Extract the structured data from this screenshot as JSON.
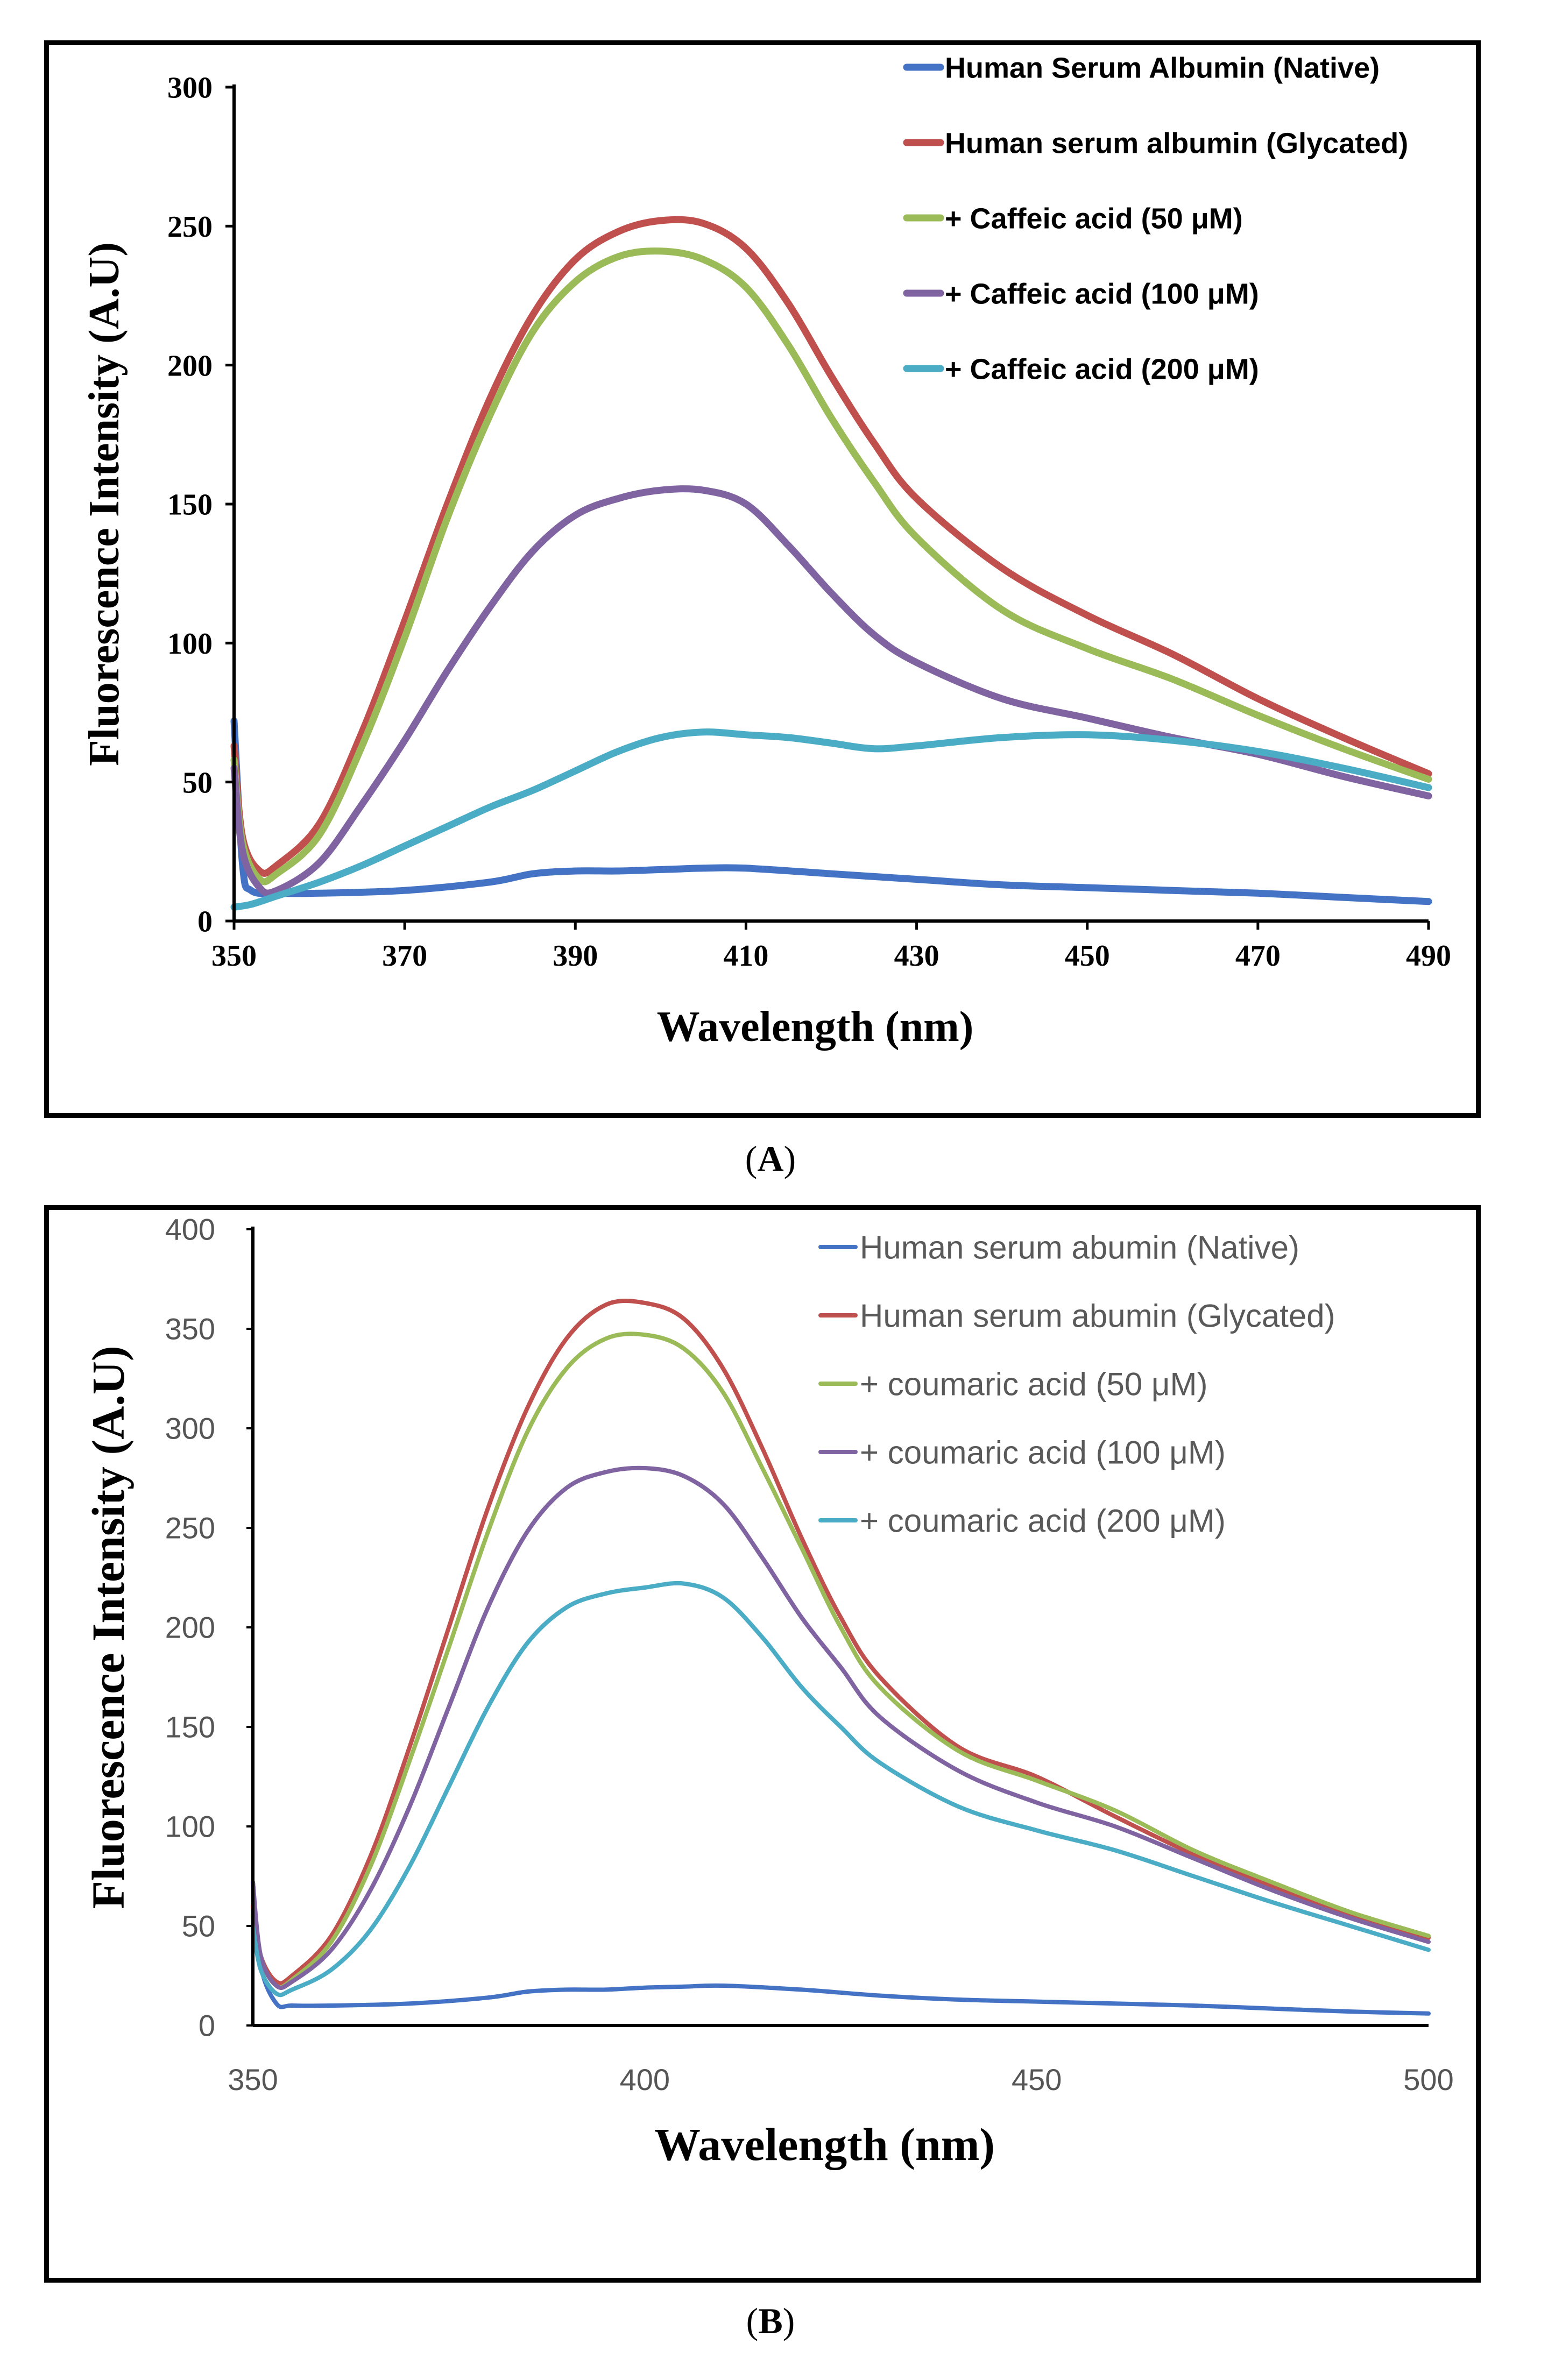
{
  "colors": {
    "native_a": "#4472C4",
    "glycated_a": "#C0504D",
    "ca50": "#9BBB59",
    "ca100": "#8064A2",
    "ca200": "#4BACC6",
    "native_b": "#4472C4",
    "glycated_b": "#C0504D",
    "cu50": "#9BBB59",
    "cu100": "#8064A2",
    "cu200": "#4BACC6"
  },
  "panels": {
    "a": {
      "label_open": "(",
      "label_letter": "A",
      "label_close": ")"
    },
    "b": {
      "label_open": "(",
      "label_letter": "B",
      "label_close": ")"
    }
  },
  "chart_data": [
    {
      "id": "A",
      "type": "line",
      "title": "",
      "xlabel": "Wavelength  (nm)",
      "ylabel": "Fluorescence Intensity (A.U)",
      "xlim": [
        350,
        490
      ],
      "ylim": [
        0,
        300
      ],
      "xticks": [
        350,
        370,
        390,
        410,
        430,
        450,
        470,
        490
      ],
      "yticks": [
        0,
        50,
        100,
        150,
        200,
        250,
        300
      ],
      "grid": false,
      "legend": "top-right",
      "series": [
        {
          "name": "Human Serum Albumin (Native)",
          "color": "#4472C4",
          "x": [
            350,
            351,
            352,
            355,
            360,
            370,
            380,
            385,
            390,
            395,
            400,
            405,
            410,
            420,
            430,
            440,
            450,
            460,
            470,
            480,
            490
          ],
          "y": [
            72,
            20,
            11,
            10,
            10,
            11,
            14,
            17,
            18,
            18,
            18.5,
            19,
            19,
            17,
            15,
            13,
            12,
            11,
            10,
            8.5,
            7
          ]
        },
        {
          "name": "Human serum albumin (Glycated)",
          "color": "#C0504D",
          "x": [
            350,
            351,
            353,
            355,
            360,
            365,
            370,
            375,
            380,
            385,
            390,
            395,
            400,
            405,
            410,
            415,
            420,
            425,
            430,
            440,
            450,
            460,
            470,
            480,
            490
          ],
          "y": [
            63,
            30,
            18,
            20,
            35,
            68,
            108,
            150,
            188,
            218,
            238,
            248,
            252,
            251,
            242,
            222,
            196,
            172,
            152,
            127,
            110,
            96,
            80,
            66,
            53
          ]
        },
        {
          "name": "+ Caffeic acid (50 μM)",
          "color": "#9BBB59",
          "x": [
            350,
            351,
            353,
            355,
            360,
            365,
            370,
            375,
            380,
            385,
            390,
            395,
            400,
            405,
            410,
            415,
            420,
            425,
            430,
            440,
            450,
            460,
            470,
            480,
            490
          ],
          "y": [
            58,
            28,
            15,
            17,
            31,
            63,
            102,
            145,
            182,
            212,
            230,
            239,
            241,
            238,
            228,
            207,
            181,
            158,
            138,
            112,
            98,
            87,
            74,
            62,
            51
          ]
        },
        {
          "name": "+ Caffeic acid (100 μM)",
          "color": "#8064A2",
          "x": [
            350,
            351,
            353,
            355,
            360,
            365,
            370,
            375,
            380,
            385,
            390,
            395,
            400,
            405,
            410,
            415,
            420,
            425,
            430,
            440,
            450,
            460,
            470,
            480,
            490
          ],
          "y": [
            55,
            25,
            12,
            11,
            21,
            42,
            65,
            90,
            113,
            133,
            146,
            152,
            155,
            155,
            150,
            135,
            118,
            103,
            93,
            80,
            73,
            66,
            60,
            52,
            45
          ]
        },
        {
          "name": "+ Caffeic acid (200 μM)",
          "color": "#4BACC6",
          "x": [
            350,
            352,
            355,
            360,
            365,
            370,
            375,
            380,
            385,
            390,
            395,
            400,
            405,
            410,
            415,
            420,
            425,
            430,
            440,
            450,
            460,
            470,
            480,
            490
          ],
          "y": [
            5,
            6,
            9,
            14,
            20,
            27,
            34,
            41,
            47,
            54,
            61,
            66,
            68,
            67,
            66,
            64,
            62,
            63,
            66,
            67,
            65,
            61,
            55,
            48
          ]
        }
      ]
    },
    {
      "id": "B",
      "type": "line",
      "title": "",
      "xlabel": "Wavelength  (nm)",
      "ylabel": "Fluorescence Intensity (A.U)",
      "xlim": [
        350,
        500
      ],
      "ylim": [
        0,
        400
      ],
      "xticks": [
        350,
        400,
        450,
        500
      ],
      "yticks": [
        0,
        50,
        100,
        150,
        200,
        250,
        300,
        350,
        400
      ],
      "grid": false,
      "legend": "top-right",
      "series": [
        {
          "name": "Human serum abumin (Native)",
          "color": "#4472C4",
          "x": [
            350,
            351,
            353,
            355,
            360,
            370,
            380,
            385,
            390,
            395,
            400,
            405,
            410,
            420,
            430,
            440,
            450,
            460,
            470,
            480,
            490,
            500
          ],
          "y": [
            72,
            30,
            11,
            10,
            10,
            11,
            14,
            17,
            18,
            18,
            19,
            19.5,
            20,
            18,
            15,
            13,
            12,
            11,
            10,
            8.5,
            7,
            6
          ]
        },
        {
          "name": "Human serum abumin (Glycated)",
          "color": "#C0504D",
          "x": [
            350,
            351,
            353,
            355,
            360,
            365,
            370,
            375,
            380,
            385,
            390,
            395,
            400,
            405,
            410,
            415,
            420,
            425,
            430,
            440,
            450,
            460,
            470,
            480,
            490,
            500
          ],
          "y": [
            60,
            35,
            22,
            25,
            45,
            85,
            140,
            200,
            260,
            310,
            345,
            362,
            363,
            355,
            330,
            290,
            245,
            205,
            175,
            140,
            125,
            105,
            86,
            70,
            56,
            44
          ]
        },
        {
          "name": "+ coumaric acid (50 μM)",
          "color": "#9BBB59",
          "x": [
            350,
            351,
            353,
            355,
            360,
            365,
            370,
            375,
            380,
            385,
            390,
            395,
            400,
            405,
            410,
            415,
            420,
            425,
            430,
            440,
            450,
            460,
            470,
            480,
            490,
            500
          ],
          "y": [
            55,
            33,
            20,
            23,
            42,
            80,
            133,
            190,
            248,
            298,
            330,
            345,
            347,
            340,
            318,
            280,
            240,
            200,
            170,
            138,
            123,
            108,
            88,
            72,
            57,
            45
          ]
        },
        {
          "name": "+ coumaric acid (100 μM)",
          "color": "#8064A2",
          "x": [
            350,
            351,
            353,
            355,
            360,
            365,
            370,
            375,
            380,
            385,
            390,
            395,
            400,
            405,
            410,
            415,
            420,
            425,
            430,
            440,
            450,
            460,
            470,
            480,
            490,
            500
          ],
          "y": [
            72,
            35,
            20,
            22,
            38,
            68,
            110,
            160,
            210,
            248,
            270,
            278,
            280,
            276,
            262,
            235,
            205,
            180,
            155,
            128,
            112,
            100,
            84,
            68,
            54,
            42
          ]
        },
        {
          "name": "+ coumaric acid (200 μM)",
          "color": "#4BACC6",
          "x": [
            350,
            351,
            353,
            355,
            360,
            365,
            370,
            375,
            380,
            385,
            390,
            395,
            400,
            405,
            410,
            415,
            420,
            425,
            430,
            440,
            450,
            460,
            470,
            480,
            490,
            500
          ],
          "y": [
            50,
            28,
            16,
            18,
            28,
            48,
            80,
            120,
            160,
            192,
            210,
            217,
            220,
            222,
            215,
            195,
            170,
            150,
            132,
            110,
            98,
            88,
            75,
            62,
            50,
            38
          ]
        }
      ]
    }
  ]
}
